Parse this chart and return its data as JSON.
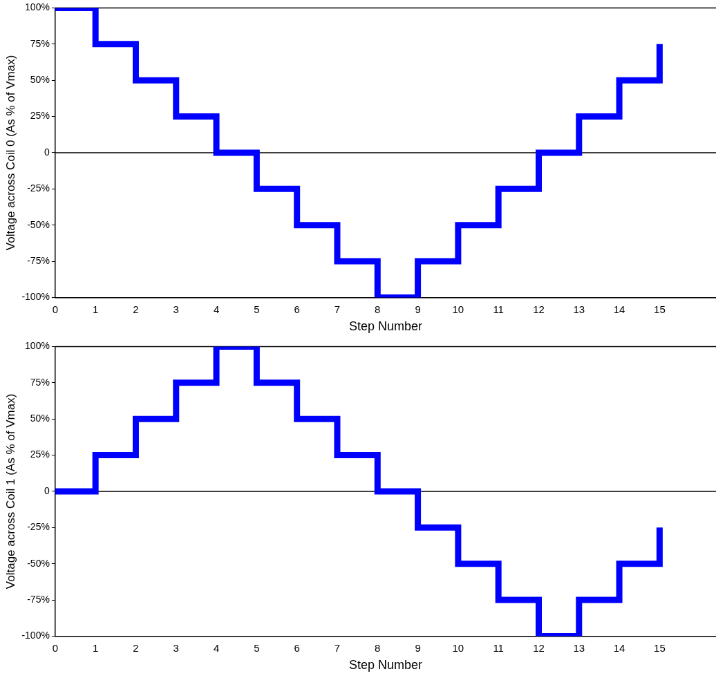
{
  "chart_data": [
    {
      "type": "step",
      "xlabel": "Step Number",
      "ylabel": "Voltage across Coil 0 (As % of Vmax)",
      "x": [
        0,
        1,
        2,
        3,
        4,
        5,
        6,
        7,
        8,
        9,
        10,
        11,
        12,
        13,
        14,
        15
      ],
      "series": [
        {
          "color": "#0000ff",
          "values": [
            100,
            75,
            50,
            25,
            0,
            -25,
            -50,
            -75,
            -100,
            -75,
            -50,
            -25,
            0,
            25,
            50,
            75
          ]
        }
      ],
      "xlim": [
        0,
        16.4
      ],
      "xticks": [
        0,
        1,
        2,
        3,
        4,
        5,
        6,
        7,
        8,
        9,
        10,
        11,
        12,
        13,
        14,
        15
      ],
      "ylim": [
        -100,
        100
      ],
      "yticks": [
        {
          "value": -100,
          "label": "-100%"
        },
        {
          "value": -75,
          "label": "-75%"
        },
        {
          "value": -50,
          "label": "-50%"
        },
        {
          "value": -25,
          "label": "-25%"
        },
        0,
        {
          "value": 25,
          "label": "25%"
        },
        {
          "value": 50,
          "label": "50%"
        },
        {
          "value": 75,
          "label": "75%"
        },
        {
          "value": 100,
          "label": "100%"
        }
      ],
      "ref_lines": [
        {
          "axis": "y",
          "value": 0,
          "color": "#000000"
        }
      ],
      "grid": false,
      "legend": false,
      "marker": "none",
      "line_style": "solid"
    },
    {
      "type": "step",
      "xlabel": "Step Number",
      "ylabel": "Voltage across Coil 1 (As % of Vmax)",
      "x": [
        0,
        1,
        2,
        3,
        4,
        5,
        6,
        7,
        8,
        9,
        10,
        11,
        12,
        13,
        14,
        15
      ],
      "series": [
        {
          "color": "#0000ff",
          "values": [
            0,
            25,
            50,
            75,
            100,
            75,
            50,
            25,
            0,
            -25,
            -50,
            -75,
            -100,
            -75,
            -50,
            -25
          ]
        }
      ],
      "xlim": [
        0,
        16.4
      ],
      "xticks": [
        0,
        1,
        2,
        3,
        4,
        5,
        6,
        7,
        8,
        9,
        10,
        11,
        12,
        13,
        14,
        15
      ],
      "ylim": [
        -100,
        100
      ],
      "yticks": [
        {
          "value": -100,
          "label": "-100%"
        },
        {
          "value": -75,
          "label": "-75%"
        },
        {
          "value": -50,
          "label": "-50%"
        },
        {
          "value": -25,
          "label": "-25%"
        },
        0,
        {
          "value": 25,
          "label": "25%"
        },
        {
          "value": 50,
          "label": "50%"
        },
        {
          "value": 75,
          "label": "75%"
        },
        {
          "value": 100,
          "label": "100%"
        }
      ],
      "ref_lines": [
        {
          "axis": "y",
          "value": 0,
          "color": "#000000"
        }
      ],
      "grid": false,
      "legend": false,
      "marker": "none",
      "line_style": "solid"
    }
  ]
}
